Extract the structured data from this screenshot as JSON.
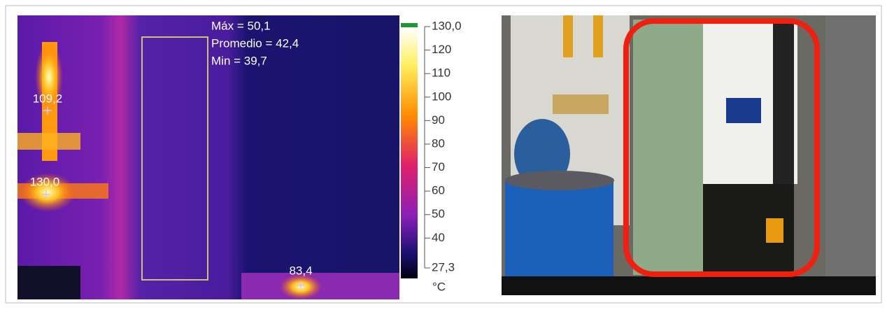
{
  "thermal": {
    "stats": [
      "Máx = 50,1",
      "Promedio = 42,4",
      "Min = 39,7"
    ],
    "spots": [
      "109,2",
      "130,0",
      "83,4"
    ],
    "scale": {
      "range": [
        27.3,
        130
      ],
      "unit": "°C",
      "ticks": [
        {
          "value": 130,
          "label": "130,0"
        },
        120,
        110,
        100,
        90,
        80,
        70,
        60,
        50,
        40,
        {
          "value": 27.3,
          "label": "27,3"
        }
      ]
    }
  }
}
